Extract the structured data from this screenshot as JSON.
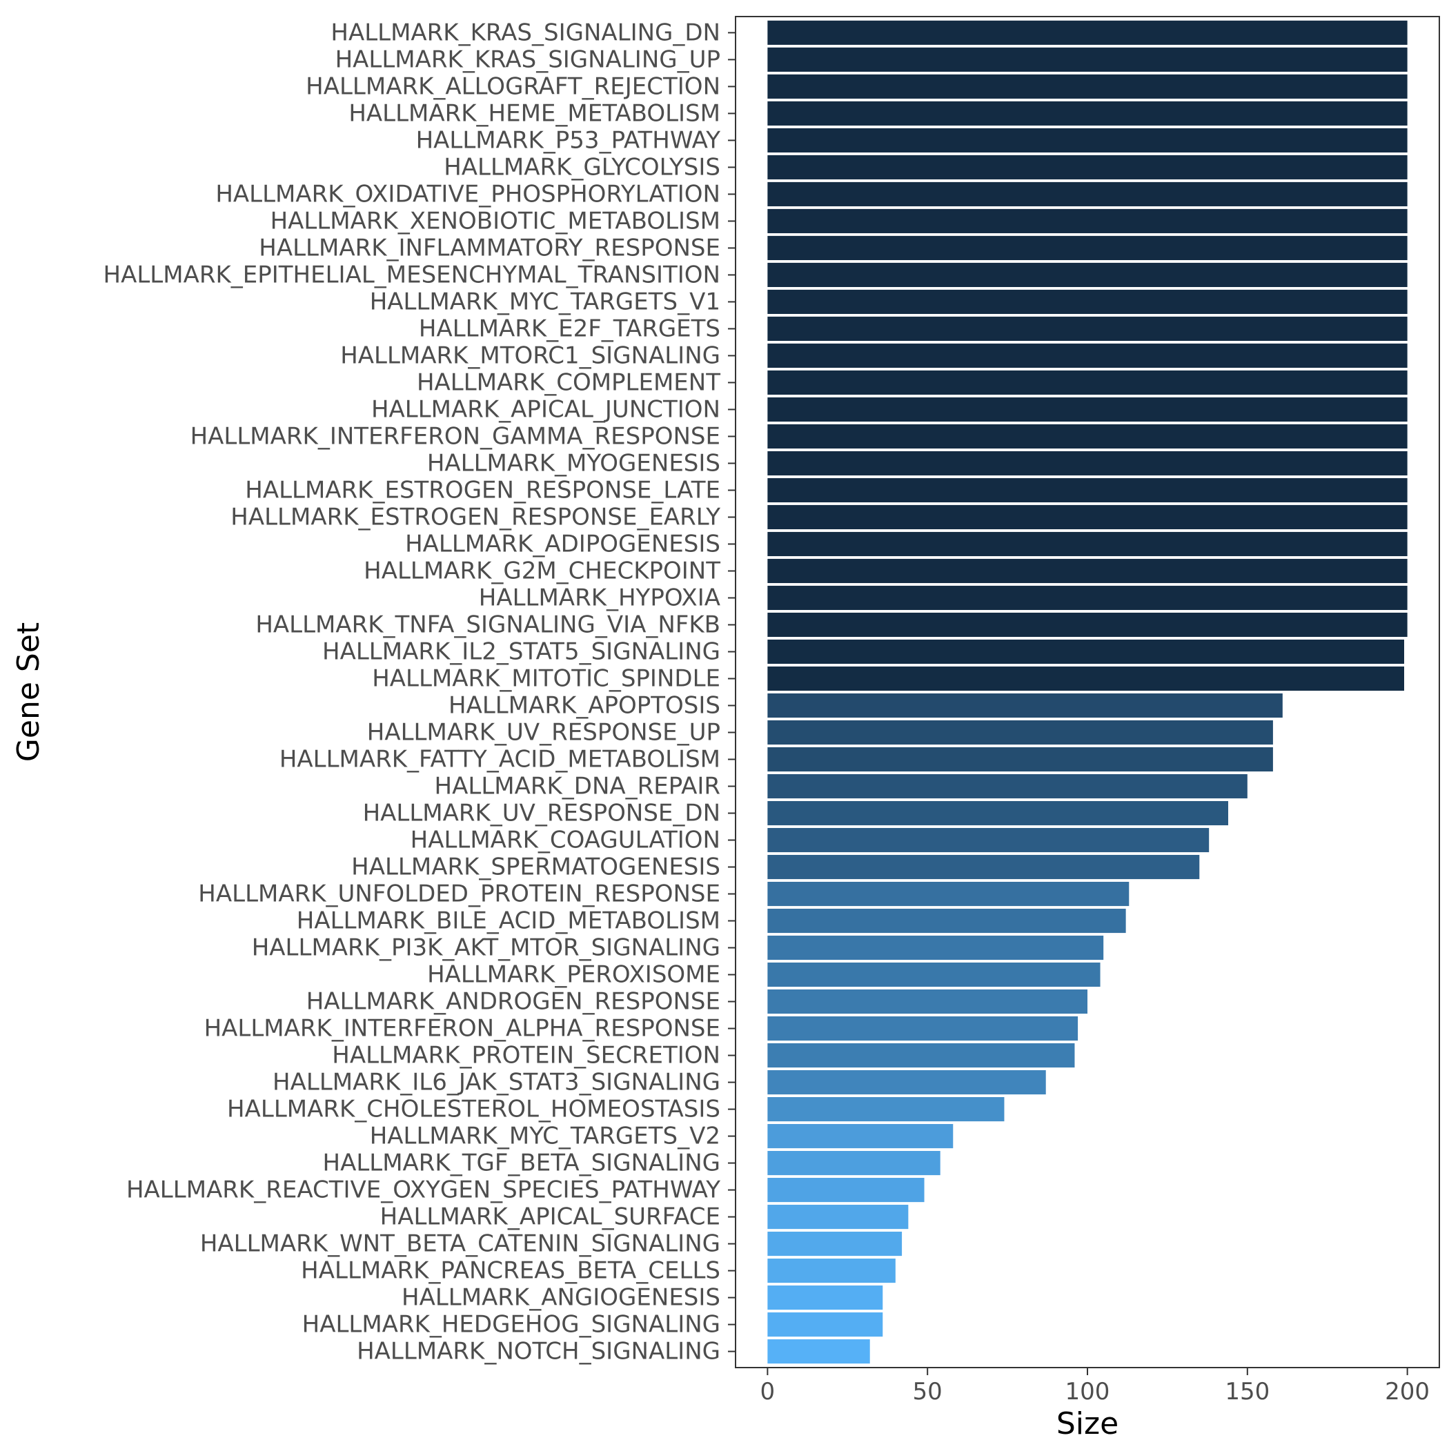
{
  "chart_data": {
    "type": "bar",
    "orientation": "horizontal",
    "xlabel": "Size",
    "ylabel": "Gene Set",
    "xlim": [
      -10,
      210
    ],
    "xticks": [
      0,
      50,
      100,
      150,
      200
    ],
    "color_scale": {
      "low": "#56B1F7",
      "high": "#132B43"
    },
    "categories": [
      "HALLMARK_KRAS_SIGNALING_DN",
      "HALLMARK_KRAS_SIGNALING_UP",
      "HALLMARK_ALLOGRAFT_REJECTION",
      "HALLMARK_HEME_METABOLISM",
      "HALLMARK_P53_PATHWAY",
      "HALLMARK_GLYCOLYSIS",
      "HALLMARK_OXIDATIVE_PHOSPHORYLATION",
      "HALLMARK_XENOBIOTIC_METABOLISM",
      "HALLMARK_INFLAMMATORY_RESPONSE",
      "HALLMARK_EPITHELIAL_MESENCHYMAL_TRANSITION",
      "HALLMARK_MYC_TARGETS_V1",
      "HALLMARK_E2F_TARGETS",
      "HALLMARK_MTORC1_SIGNALING",
      "HALLMARK_COMPLEMENT",
      "HALLMARK_APICAL_JUNCTION",
      "HALLMARK_INTERFERON_GAMMA_RESPONSE",
      "HALLMARK_MYOGENESIS",
      "HALLMARK_ESTROGEN_RESPONSE_LATE",
      "HALLMARK_ESTROGEN_RESPONSE_EARLY",
      "HALLMARK_ADIPOGENESIS",
      "HALLMARK_G2M_CHECKPOINT",
      "HALLMARK_HYPOXIA",
      "HALLMARK_TNFA_SIGNALING_VIA_NFKB",
      "HALLMARK_IL2_STAT5_SIGNALING",
      "HALLMARK_MITOTIC_SPINDLE",
      "HALLMARK_APOPTOSIS",
      "HALLMARK_UV_RESPONSE_UP",
      "HALLMARK_FATTY_ACID_METABOLISM",
      "HALLMARK_DNA_REPAIR",
      "HALLMARK_UV_RESPONSE_DN",
      "HALLMARK_COAGULATION",
      "HALLMARK_SPERMATOGENESIS",
      "HALLMARK_UNFOLDED_PROTEIN_RESPONSE",
      "HALLMARK_BILE_ACID_METABOLISM",
      "HALLMARK_PI3K_AKT_MTOR_SIGNALING",
      "HALLMARK_PEROXISOME",
      "HALLMARK_ANDROGEN_RESPONSE",
      "HALLMARK_INTERFERON_ALPHA_RESPONSE",
      "HALLMARK_PROTEIN_SECRETION",
      "HALLMARK_IL6_JAK_STAT3_SIGNALING",
      "HALLMARK_CHOLESTEROL_HOMEOSTASIS",
      "HALLMARK_MYC_TARGETS_V2",
      "HALLMARK_TGF_BETA_SIGNALING",
      "HALLMARK_REACTIVE_OXYGEN_SPECIES_PATHWAY",
      "HALLMARK_APICAL_SURFACE",
      "HALLMARK_WNT_BETA_CATENIN_SIGNALING",
      "HALLMARK_PANCREAS_BETA_CELLS",
      "HALLMARK_ANGIOGENESIS",
      "HALLMARK_HEDGEHOG_SIGNALING",
      "HALLMARK_NOTCH_SIGNALING"
    ],
    "values": [
      200,
      200,
      200,
      200,
      200,
      200,
      200,
      200,
      200,
      200,
      200,
      200,
      200,
      200,
      200,
      200,
      200,
      200,
      200,
      200,
      200,
      200,
      200,
      199,
      199,
      161,
      158,
      158,
      150,
      144,
      138,
      135,
      113,
      112,
      105,
      104,
      100,
      97,
      96,
      87,
      74,
      58,
      54,
      49,
      44,
      42,
      40,
      36,
      36,
      32
    ]
  }
}
